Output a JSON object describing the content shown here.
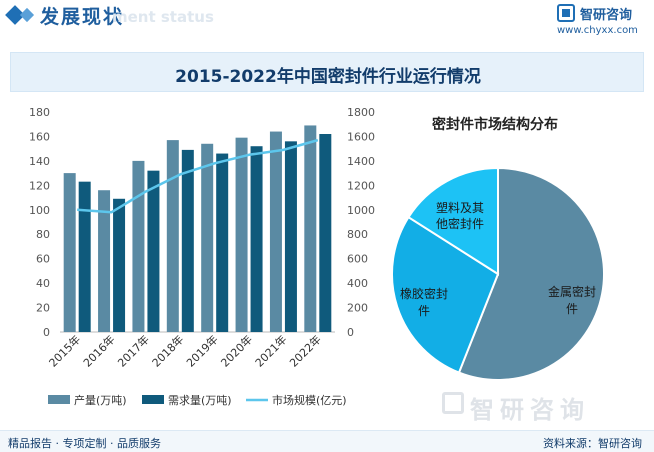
{
  "header": {
    "title": "发展现状",
    "subtitle_ghost": "ment status",
    "brand_name": "智研咨询",
    "brand_url": "www.chyxx.com",
    "accent_color": "#1f6fb5"
  },
  "chart_title": "2015-2022年中国密封件行业运行情况",
  "chart_data": [
    {
      "type": "bar",
      "categories": [
        "2015年",
        "2016年",
        "2017年",
        "2018年",
        "2019年",
        "2020年",
        "2021年",
        "2022年"
      ],
      "series": [
        {
          "name": "产量(万吨)",
          "type": "bar",
          "axis": "left",
          "color": "#5a8aa3",
          "values": [
            130,
            116,
            140,
            157,
            154,
            159,
            164,
            169
          ]
        },
        {
          "name": "需求量(万吨)",
          "type": "bar",
          "axis": "left",
          "color": "#0f5a7c",
          "values": [
            123,
            109,
            132,
            149,
            146,
            152,
            156,
            162
          ]
        },
        {
          "name": "市场规模(亿元)",
          "type": "line",
          "axis": "right",
          "color": "#5cc6ec",
          "values": [
            1000,
            980,
            1150,
            1290,
            1380,
            1450,
            1490,
            1570
          ]
        }
      ],
      "y_left": {
        "min": 0,
        "max": 180,
        "ticks": [
          0,
          20,
          40,
          60,
          80,
          100,
          120,
          140,
          160,
          180
        ]
      },
      "y_right": {
        "min": 0,
        "max": 1800,
        "ticks": [
          0,
          200,
          400,
          600,
          800,
          1000,
          1200,
          1400,
          1600,
          1800
        ]
      },
      "grid": false,
      "legend": "bottom"
    },
    {
      "type": "pie",
      "title": "密封件市场结构分布",
      "slices": [
        {
          "name": "金属密封件",
          "value": 56,
          "color": "#5a8aa3"
        },
        {
          "name": "橡胶密封件",
          "value": 28,
          "color": "#12aee6"
        },
        {
          "name": "塑料及其他密封件",
          "value": 16,
          "color": "#1dc2f5"
        }
      ]
    }
  ],
  "pie_labels": [
    "金属密封",
    "件",
    "橡胶密封",
    "件",
    "塑料及其",
    "他密封件"
  ],
  "footer": {
    "left": "精品报告 · 专项定制 · 品质服务",
    "right": "资料来源：智研咨询"
  },
  "watermark": "智研咨询"
}
